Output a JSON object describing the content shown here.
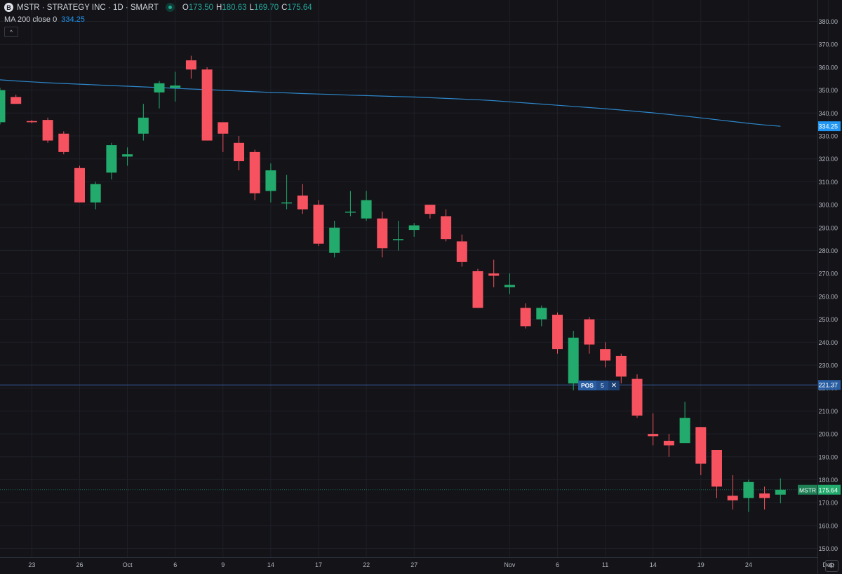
{
  "legend": {
    "symbol_badge": "B",
    "title": "MSTR · STRATEGY INC · 1D · SMART",
    "open_key": "O",
    "open": "173.50",
    "high_key": "H",
    "high": "180.63",
    "low_key": "L",
    "low": "169.70",
    "close_key": "C",
    "close": "175.64"
  },
  "indicator": {
    "label": "MA 200 close 0",
    "value": "334.25"
  },
  "collapse_icon": "chevron-up-icon",
  "position": {
    "label": "POS",
    "qty": "5",
    "close_glyph": "✕"
  },
  "colors": {
    "background": "#131318",
    "up": "#22ab6c",
    "down": "#f7525f",
    "ma": "#2e86c9",
    "grid": "#1f2128",
    "axis_text": "#b2b5be",
    "position_line": "#2962ff"
  },
  "chart_data": {
    "type": "candlestick",
    "y_axis": {
      "min": 150,
      "max": 380,
      "ticks": [
        "380.00",
        "370.00",
        "360.00",
        "350.00",
        "340.00",
        "330.00",
        "320.00",
        "310.00",
        "300.00",
        "290.00",
        "280.00",
        "270.00",
        "260.00",
        "250.00",
        "240.00",
        "230.00",
        "220.00",
        "210.00",
        "200.00",
        "190.00",
        "180.00",
        "170.00",
        "160.00",
        "150.00"
      ]
    },
    "x_axis": {
      "ticks": [
        {
          "label": "23",
          "index": 2
        },
        {
          "label": "26",
          "index": 5
        },
        {
          "label": "Oct",
          "index": 8
        },
        {
          "label": "6",
          "index": 11
        },
        {
          "label": "9",
          "index": 14
        },
        {
          "label": "14",
          "index": 17
        },
        {
          "label": "17",
          "index": 20
        },
        {
          "label": "22",
          "index": 23
        },
        {
          "label": "27",
          "index": 26
        },
        {
          "label": "Nov",
          "index": 32
        },
        {
          "label": "6",
          "index": 35
        },
        {
          "label": "11",
          "index": 38
        },
        {
          "label": "14",
          "index": 41
        },
        {
          "label": "19",
          "index": 44
        },
        {
          "label": "24",
          "index": 47
        },
        {
          "label": "Dec",
          "index": 52
        }
      ]
    },
    "candles": [
      {
        "o": 336,
        "h": 351,
        "l": 335,
        "c": 350
      },
      {
        "o": 347,
        "h": 348,
        "l": 344,
        "c": 344
      },
      {
        "o": 336.5,
        "h": 337,
        "l": 335.5,
        "c": 336
      },
      {
        "o": 337,
        "h": 338,
        "l": 327,
        "c": 328
      },
      {
        "o": 331,
        "h": 332,
        "l": 322,
        "c": 323
      },
      {
        "o": 316,
        "h": 317,
        "l": 301,
        "c": 301
      },
      {
        "o": 301,
        "h": 310,
        "l": 298,
        "c": 309
      },
      {
        "o": 314,
        "h": 327,
        "l": 311,
        "c": 326
      },
      {
        "o": 321,
        "h": 325,
        "l": 317,
        "c": 322
      },
      {
        "o": 331,
        "h": 344,
        "l": 328,
        "c": 338
      },
      {
        "o": 349,
        "h": 354,
        "l": 342,
        "c": 353
      },
      {
        "o": 351,
        "h": 358,
        "l": 345,
        "c": 352
      },
      {
        "o": 363,
        "h": 365,
        "l": 355,
        "c": 359
      },
      {
        "o": 359,
        "h": 360,
        "l": 328,
        "c": 328
      },
      {
        "o": 336,
        "h": 336,
        "l": 323,
        "c": 331
      },
      {
        "o": 327,
        "h": 330,
        "l": 315,
        "c": 319
      },
      {
        "o": 323,
        "h": 324,
        "l": 302,
        "c": 305
      },
      {
        "o": 306,
        "h": 318,
        "l": 301,
        "c": 315
      },
      {
        "o": 301,
        "h": 313,
        "l": 298,
        "c": 301
      },
      {
        "o": 304,
        "h": 309,
        "l": 296,
        "c": 298
      },
      {
        "o": 300,
        "h": 302,
        "l": 282,
        "c": 283
      },
      {
        "o": 279,
        "h": 293,
        "l": 277,
        "c": 290
      },
      {
        "o": 297,
        "h": 306,
        "l": 295,
        "c": 297
      },
      {
        "o": 294,
        "h": 306,
        "l": 293,
        "c": 302
      },
      {
        "o": 294,
        "h": 297,
        "l": 277,
        "c": 281
      },
      {
        "o": 285,
        "h": 293,
        "l": 280,
        "c": 285
      },
      {
        "o": 289,
        "h": 292,
        "l": 286,
        "c": 291
      },
      {
        "o": 300,
        "h": 300,
        "l": 294,
        "c": 296
      },
      {
        "o": 295,
        "h": 298,
        "l": 284,
        "c": 285
      },
      {
        "o": 284,
        "h": 287,
        "l": 273,
        "c": 275
      },
      {
        "o": 271,
        "h": 272,
        "l": 255,
        "c": 255
      },
      {
        "o": 270,
        "h": 276,
        "l": 264,
        "c": 269
      },
      {
        "o": 264,
        "h": 270,
        "l": 261,
        "c": 265
      },
      {
        "o": 255,
        "h": 257,
        "l": 246,
        "c": 247
      },
      {
        "o": 250,
        "h": 256,
        "l": 247,
        "c": 255
      },
      {
        "o": 252,
        "h": 253,
        "l": 235,
        "c": 237
      },
      {
        "o": 222,
        "h": 245,
        "l": 219,
        "c": 242
      },
      {
        "o": 250,
        "h": 251,
        "l": 235,
        "c": 239
      },
      {
        "o": 237,
        "h": 240,
        "l": 229,
        "c": 232
      },
      {
        "o": 234,
        "h": 235,
        "l": 222,
        "c": 225
      },
      {
        "o": 224,
        "h": 226,
        "l": 207,
        "c": 208
      },
      {
        "o": 200,
        "h": 209,
        "l": 195,
        "c": 199
      },
      {
        "o": 197,
        "h": 200,
        "l": 190,
        "c": 195
      },
      {
        "o": 196,
        "h": 214,
        "l": 196,
        "c": 207
      },
      {
        "o": 203,
        "h": 203,
        "l": 182,
        "c": 187
      },
      {
        "o": 193,
        "h": 193,
        "l": 172,
        "c": 177
      },
      {
        "o": 173,
        "h": 182,
        "l": 167,
        "c": 171
      },
      {
        "o": 172,
        "h": 180,
        "l": 166,
        "c": 179
      },
      {
        "o": 174,
        "h": 177,
        "l": 167,
        "c": 172
      },
      {
        "o": 173.5,
        "h": 180.63,
        "l": 169.7,
        "c": 175.64
      }
    ],
    "ma200": [
      354.5,
      354,
      353.6,
      353.2,
      352.9,
      352.6,
      352.3,
      352,
      351.7,
      351.4,
      351.1,
      350.8,
      350.5,
      350.2,
      349.9,
      349.6,
      349.3,
      349,
      348.8,
      348.5,
      348.3,
      348.1,
      347.8,
      347.6,
      347.4,
      347.2,
      347,
      346.7,
      346.4,
      346.1,
      345.8,
      345.4,
      344.9,
      344.4,
      343.9,
      343.4,
      342.9,
      342.4,
      341.9,
      341.3,
      340.7,
      340.1,
      339.4,
      338.7,
      337.9,
      337.1,
      336.3,
      335.5,
      334.8,
      334.25
    ],
    "position_price": 221.37,
    "position_label": "221.37",
    "last_price": 175.64,
    "last_label": "175.64",
    "last_symbol": "MSTR",
    "ma_label": "334.25"
  }
}
